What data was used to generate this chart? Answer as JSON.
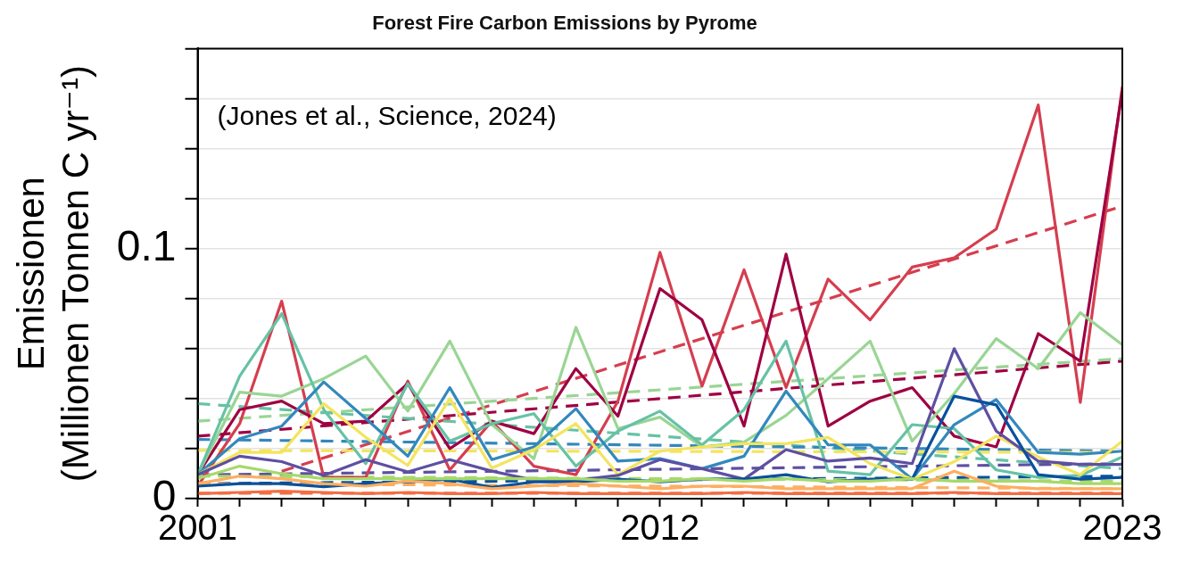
{
  "chart_data": {
    "type": "line",
    "title": "Forest Fire Carbon Emissions by Pyrome",
    "ylabel": "Emissionen\n(Millionen Tonnen C yr⁻¹)",
    "annotations": [
      "(Jones et al., Science, 2024)"
    ],
    "x": [
      2001,
      2002,
      2003,
      2004,
      2005,
      2006,
      2007,
      2008,
      2009,
      2010,
      2011,
      2012,
      2013,
      2014,
      2015,
      2016,
      2017,
      2018,
      2019,
      2020,
      2021,
      2022,
      2023
    ],
    "xlim": [
      2001,
      2023
    ],
    "xticks": [
      {
        "value": 2001,
        "label": "2001"
      },
      {
        "value": 2002,
        "label": null
      },
      {
        "value": 2003,
        "label": null
      },
      {
        "value": 2004,
        "label": null
      },
      {
        "value": 2005,
        "label": null
      },
      {
        "value": 2006,
        "label": null
      },
      {
        "value": 2007,
        "label": null
      },
      {
        "value": 2008,
        "label": null
      },
      {
        "value": 2009,
        "label": null
      },
      {
        "value": 2010,
        "label": null
      },
      {
        "value": 2011,
        "label": null
      },
      {
        "value": 2012,
        "label": "2012"
      },
      {
        "value": 2013,
        "label": null
      },
      {
        "value": 2014,
        "label": null
      },
      {
        "value": 2015,
        "label": null
      },
      {
        "value": 2016,
        "label": null
      },
      {
        "value": 2017,
        "label": null
      },
      {
        "value": 2018,
        "label": null
      },
      {
        "value": 2019,
        "label": null
      },
      {
        "value": 2020,
        "label": null
      },
      {
        "value": 2021,
        "label": null
      },
      {
        "value": 2022,
        "label": null
      },
      {
        "value": 2023,
        "label": "2023"
      }
    ],
    "ylim": [
      0,
      0.18
    ],
    "yticks": [
      0,
      {
        "value": 0.02,
        "label": null
      },
      {
        "value": 0.04,
        "label": null
      },
      {
        "value": 0.06,
        "label": null
      },
      {
        "value": 0.08,
        "label": null
      },
      {
        "value": 0.1,
        "label": "0.1"
      },
      {
        "value": 0.12,
        "label": null
      },
      {
        "value": 0.14,
        "label": null
      },
      {
        "value": 0.16,
        "label": null
      },
      {
        "value": 0.18,
        "label": null
      }
    ],
    "grid": "y",
    "legend": false,
    "marker": "none",
    "line_style": "solid",
    "series": [
      {
        "color": "#f46d43",
        "values": [
          0.002,
          0.0025,
          0.003,
          0.0025,
          0.002,
          0.0025,
          0.002,
          0.002,
          0.0025,
          0.002,
          0.002,
          0.002,
          0.002,
          0.0025,
          0.002,
          0.002,
          0.002,
          0.002,
          0.0025,
          0.002,
          0.002,
          0.002,
          0.002
        ]
      },
      {
        "color": "#fdae61",
        "values": [
          0.006,
          0.009,
          0.008,
          0.006,
          0.005,
          0.007,
          0.006,
          0.004,
          0.005,
          0.006,
          0.005,
          0.004,
          0.005,
          0.005,
          0.004,
          0.004,
          0.004,
          0.004,
          0.011,
          0.005,
          0.004,
          0.004,
          0.004
        ]
      },
      {
        "color": "#a6d96a",
        "values": [
          0.008,
          0.013,
          0.01,
          0.008,
          0.008,
          0.008,
          0.008,
          0.008,
          0.008,
          0.008,
          0.007,
          0.007,
          0.008,
          0.007,
          0.008,
          0.007,
          0.007,
          0.008,
          0.007,
          0.007,
          0.007,
          0.006,
          0.006
        ]
      },
      {
        "color": "#08519c",
        "values": [
          0.005,
          0.006,
          0.006,
          0.0048,
          0.006,
          0.0067,
          0.0078,
          0.0045,
          0.0067,
          0.0067,
          0.0078,
          0.0067,
          0.0078,
          0.0078,
          0.0096,
          0.0067,
          0.0078,
          0.0078,
          0.041,
          0.0375,
          0.0096,
          0.0078,
          0.0085
        ]
      },
      {
        "color": "#5e4fa2",
        "values": [
          0.0096,
          0.017,
          0.0148,
          0.0093,
          0.0156,
          0.0107,
          0.0156,
          0.011,
          0.0074,
          0.0074,
          0.0093,
          0.0156,
          0.012,
          0.0078,
          0.0196,
          0.015,
          0.0163,
          0.014,
          0.06,
          0.027,
          0.015,
          0.0137,
          0.0137
        ]
      },
      {
        "color": "#f3e45e",
        "values": [
          0.0096,
          0.0185,
          0.0185,
          0.038,
          0.0245,
          0.0133,
          0.04,
          0.0122,
          0.0196,
          0.03,
          0.0096,
          0.019,
          0.0207,
          0.022,
          0.022,
          0.0245,
          0.014,
          0.0078,
          0.0148,
          0.025,
          0.0167,
          0.0096,
          0.023
        ]
      },
      {
        "color": "#3288bd",
        "values": [
          0.0096,
          0.024,
          0.029,
          0.0467,
          0.032,
          0.017,
          0.0444,
          0.0156,
          0.0207,
          0.036,
          0.015,
          0.016,
          0.012,
          0.017,
          0.043,
          0.0215,
          0.0215,
          0.0078,
          0.0296,
          0.0396,
          0.0185,
          0.0178,
          0.019
        ]
      },
      {
        "color": "#66c2a5",
        "values": [
          0.0096,
          0.049,
          0.074,
          0.0356,
          0.014,
          0.046,
          0.023,
          0.03,
          0.034,
          0.013,
          0.027,
          0.035,
          0.0215,
          0.0356,
          0.063,
          0.011,
          0.0096,
          0.0296,
          0.028,
          0.0115,
          0.0085,
          0.0093,
          0.0167
        ]
      },
      {
        "color": "#99d594",
        "values": [
          0.0096,
          0.0426,
          0.041,
          0.048,
          0.057,
          0.035,
          0.063,
          0.0296,
          0.016,
          0.0685,
          0.028,
          0.0326,
          0.0207,
          0.0226,
          0.0333,
          0.048,
          0.063,
          0.023,
          0.042,
          0.064,
          0.052,
          0.0744,
          0.0615
        ]
      },
      {
        "color": "#9e0142",
        "values": [
          0.0096,
          0.0356,
          0.039,
          0.03,
          0.031,
          0.046,
          0.02,
          0.031,
          0.026,
          0.052,
          0.033,
          0.084,
          0.0715,
          0.029,
          0.0978,
          0.029,
          0.039,
          0.0444,
          0.025,
          0.0207,
          0.066,
          0.055,
          0.163
        ]
      },
      {
        "color": "#d53e4f",
        "values": [
          0.005,
          0.03,
          0.079,
          0.0085,
          0.0085,
          0.047,
          0.0115,
          0.031,
          0.013,
          0.0096,
          0.039,
          0.0985,
          0.045,
          0.0915,
          0.0444,
          0.0878,
          0.0715,
          0.0926,
          0.0963,
          0.1078,
          0.1574,
          0.0385,
          0.1648
        ]
      },
      {
        "color": "#f46d43",
        "line_style": "dashed",
        "x": [
          2001,
          2023
        ],
        "values": [
          0.0022,
          0.0022
        ]
      },
      {
        "color": "#fdae61",
        "line_style": "dashed",
        "x": [
          2001,
          2023
        ],
        "values": [
          0.006,
          0.004
        ]
      },
      {
        "color": "#a6d96a",
        "line_style": "dashed",
        "x": [
          2001,
          2023
        ],
        "values": [
          0.009,
          0.007
        ]
      },
      {
        "color": "#08519c",
        "line_style": "dashed",
        "x": [
          2001,
          2023
        ],
        "values": [
          0.006,
          0.009
        ]
      },
      {
        "color": "#5e4fa2",
        "line_style": "dashed",
        "x": [
          2001,
          2023
        ],
        "values": [
          0.0095,
          0.014
        ]
      },
      {
        "color": "#f3e45e",
        "line_style": "dashed",
        "x": [
          2001,
          2023
        ],
        "values": [
          0.0193,
          0.0185
        ]
      },
      {
        "color": "#3288bd",
        "line_style": "dashed",
        "x": [
          2001,
          2023
        ],
        "values": [
          0.0237,
          0.019
        ]
      },
      {
        "color": "#66c2a5",
        "line_style": "dashed",
        "x": [
          2001,
          2023
        ],
        "values": [
          0.038,
          0.012
        ]
      },
      {
        "color": "#99d594",
        "line_style": "dashed",
        "x": [
          2001,
          2023
        ],
        "values": [
          0.031,
          0.056
        ]
      },
      {
        "color": "#9e0142",
        "line_style": "dashed",
        "x": [
          2001,
          2023
        ],
        "values": [
          0.025,
          0.055
        ]
      },
      {
        "color": "#d53e4f",
        "line_style": "dashed",
        "x": [
          2003,
          2023
        ],
        "values": [
          0.011,
          0.117
        ]
      }
    ]
  }
}
